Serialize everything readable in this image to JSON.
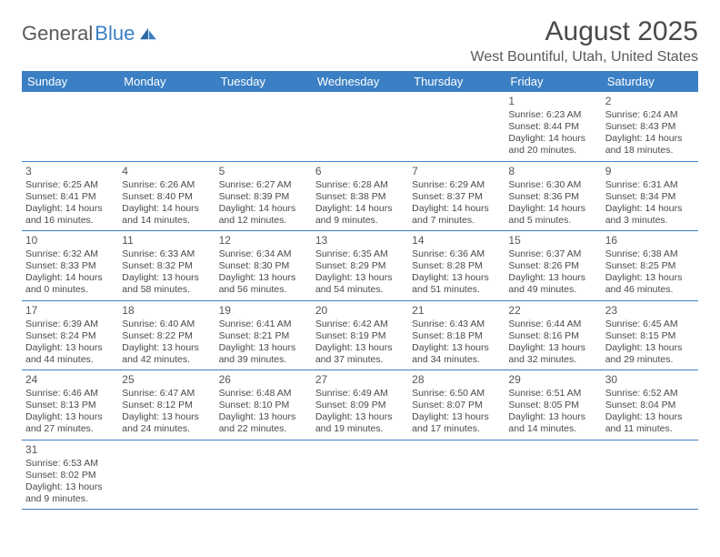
{
  "logo": {
    "part1": "General",
    "part2": "Blue"
  },
  "title": "August 2025",
  "location": "West Bountiful, Utah, United States",
  "colors": {
    "header_bg": "#3b7fc4",
    "header_text": "#ffffff",
    "border": "#3b7fc4",
    "text": "#4a4a4a",
    "logo_gray": "#5a5a5a",
    "logo_blue": "#3b7fc4"
  },
  "day_names": [
    "Sunday",
    "Monday",
    "Tuesday",
    "Wednesday",
    "Thursday",
    "Friday",
    "Saturday"
  ],
  "weeks": [
    [
      null,
      null,
      null,
      null,
      null,
      {
        "n": "1",
        "sr": "6:23 AM",
        "ss": "8:44 PM",
        "dh": "14",
        "dm": "20"
      },
      {
        "n": "2",
        "sr": "6:24 AM",
        "ss": "8:43 PM",
        "dh": "14",
        "dm": "18"
      }
    ],
    [
      {
        "n": "3",
        "sr": "6:25 AM",
        "ss": "8:41 PM",
        "dh": "14",
        "dm": "16"
      },
      {
        "n": "4",
        "sr": "6:26 AM",
        "ss": "8:40 PM",
        "dh": "14",
        "dm": "14"
      },
      {
        "n": "5",
        "sr": "6:27 AM",
        "ss": "8:39 PM",
        "dh": "14",
        "dm": "12"
      },
      {
        "n": "6",
        "sr": "6:28 AM",
        "ss": "8:38 PM",
        "dh": "14",
        "dm": "9"
      },
      {
        "n": "7",
        "sr": "6:29 AM",
        "ss": "8:37 PM",
        "dh": "14",
        "dm": "7"
      },
      {
        "n": "8",
        "sr": "6:30 AM",
        "ss": "8:36 PM",
        "dh": "14",
        "dm": "5"
      },
      {
        "n": "9",
        "sr": "6:31 AM",
        "ss": "8:34 PM",
        "dh": "14",
        "dm": "3"
      }
    ],
    [
      {
        "n": "10",
        "sr": "6:32 AM",
        "ss": "8:33 PM",
        "dh": "14",
        "dm": "0"
      },
      {
        "n": "11",
        "sr": "6:33 AM",
        "ss": "8:32 PM",
        "dh": "13",
        "dm": "58"
      },
      {
        "n": "12",
        "sr": "6:34 AM",
        "ss": "8:30 PM",
        "dh": "13",
        "dm": "56"
      },
      {
        "n": "13",
        "sr": "6:35 AM",
        "ss": "8:29 PM",
        "dh": "13",
        "dm": "54"
      },
      {
        "n": "14",
        "sr": "6:36 AM",
        "ss": "8:28 PM",
        "dh": "13",
        "dm": "51"
      },
      {
        "n": "15",
        "sr": "6:37 AM",
        "ss": "8:26 PM",
        "dh": "13",
        "dm": "49"
      },
      {
        "n": "16",
        "sr": "6:38 AM",
        "ss": "8:25 PM",
        "dh": "13",
        "dm": "46"
      }
    ],
    [
      {
        "n": "17",
        "sr": "6:39 AM",
        "ss": "8:24 PM",
        "dh": "13",
        "dm": "44"
      },
      {
        "n": "18",
        "sr": "6:40 AM",
        "ss": "8:22 PM",
        "dh": "13",
        "dm": "42"
      },
      {
        "n": "19",
        "sr": "6:41 AM",
        "ss": "8:21 PM",
        "dh": "13",
        "dm": "39"
      },
      {
        "n": "20",
        "sr": "6:42 AM",
        "ss": "8:19 PM",
        "dh": "13",
        "dm": "37"
      },
      {
        "n": "21",
        "sr": "6:43 AM",
        "ss": "8:18 PM",
        "dh": "13",
        "dm": "34"
      },
      {
        "n": "22",
        "sr": "6:44 AM",
        "ss": "8:16 PM",
        "dh": "13",
        "dm": "32"
      },
      {
        "n": "23",
        "sr": "6:45 AM",
        "ss": "8:15 PM",
        "dh": "13",
        "dm": "29"
      }
    ],
    [
      {
        "n": "24",
        "sr": "6:46 AM",
        "ss": "8:13 PM",
        "dh": "13",
        "dm": "27"
      },
      {
        "n": "25",
        "sr": "6:47 AM",
        "ss": "8:12 PM",
        "dh": "13",
        "dm": "24"
      },
      {
        "n": "26",
        "sr": "6:48 AM",
        "ss": "8:10 PM",
        "dh": "13",
        "dm": "22"
      },
      {
        "n": "27",
        "sr": "6:49 AM",
        "ss": "8:09 PM",
        "dh": "13",
        "dm": "19"
      },
      {
        "n": "28",
        "sr": "6:50 AM",
        "ss": "8:07 PM",
        "dh": "13",
        "dm": "17"
      },
      {
        "n": "29",
        "sr": "6:51 AM",
        "ss": "8:05 PM",
        "dh": "13",
        "dm": "14"
      },
      {
        "n": "30",
        "sr": "6:52 AM",
        "ss": "8:04 PM",
        "dh": "13",
        "dm": "11"
      }
    ],
    [
      {
        "n": "31",
        "sr": "6:53 AM",
        "ss": "8:02 PM",
        "dh": "13",
        "dm": "9"
      },
      null,
      null,
      null,
      null,
      null,
      null
    ]
  ],
  "labels": {
    "sunrise": "Sunrise:",
    "sunset": "Sunset:",
    "daylight": "Daylight:",
    "hours": "hours",
    "and": "and",
    "minutes": "minutes."
  }
}
